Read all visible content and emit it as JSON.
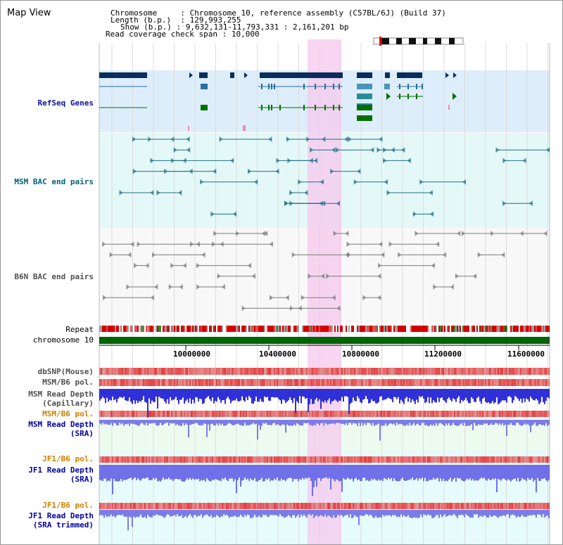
{
  "title": "Map View",
  "info": {
    "chromosome_key": "Chromosome",
    "chromosome_val": "Chromosome 10, reference assembly (C57BL/6J) (Build 37)",
    "length_key": "Length (b.p.)",
    "length_val": "129,993,255",
    "show_key": "Show (b.p.)",
    "show_val": "9,632,131-11,793,331 : 2,161,201 bp",
    "coverage_key": "Read coverage check span",
    "coverage_val": "10,000"
  },
  "tracks": {
    "refseq": "RefSeq Genes",
    "msm_bac": "MSM BAC end pairs",
    "b6n_bac": "B6N BAC end pairs",
    "repeat": "Repeat",
    "chrom": "chromosome 10",
    "dbsnp": "dbSNP(Mouse)",
    "msm_pol1": "MSM/B6 pol.",
    "msm_depth_cap": "MSM Read Depth\n(Capillary)",
    "msm_pol2": "MSM/B6 pol.",
    "msm_depth_sra": "MSM Read Depth\n(SRA)",
    "jf1_pol1": "JF1/B6 pol.",
    "jf1_depth_sra": "JF1 Read Depth\n(SRA)",
    "jf1_pol2": "JF1/B6 pol.",
    "jf1_depth_trim": "JF1 Read Depth\n(SRA trimmed)"
  },
  "scale": {
    "ticks": [
      "10000000",
      "10400000",
      "10800000",
      "11200000",
      "11600000"
    ]
  },
  "colors": {
    "refseq_label": "#1010a0",
    "msm_label": "#006080",
    "b6n_label": "#505050",
    "pol_label": "#d08000",
    "depth_label": "#0000a0",
    "highlight": "#f6c8ee",
    "refseq_bg": "#ddeefa",
    "msm_bg": "#e4f8f8",
    "chrom_bar": "#006400"
  }
}
